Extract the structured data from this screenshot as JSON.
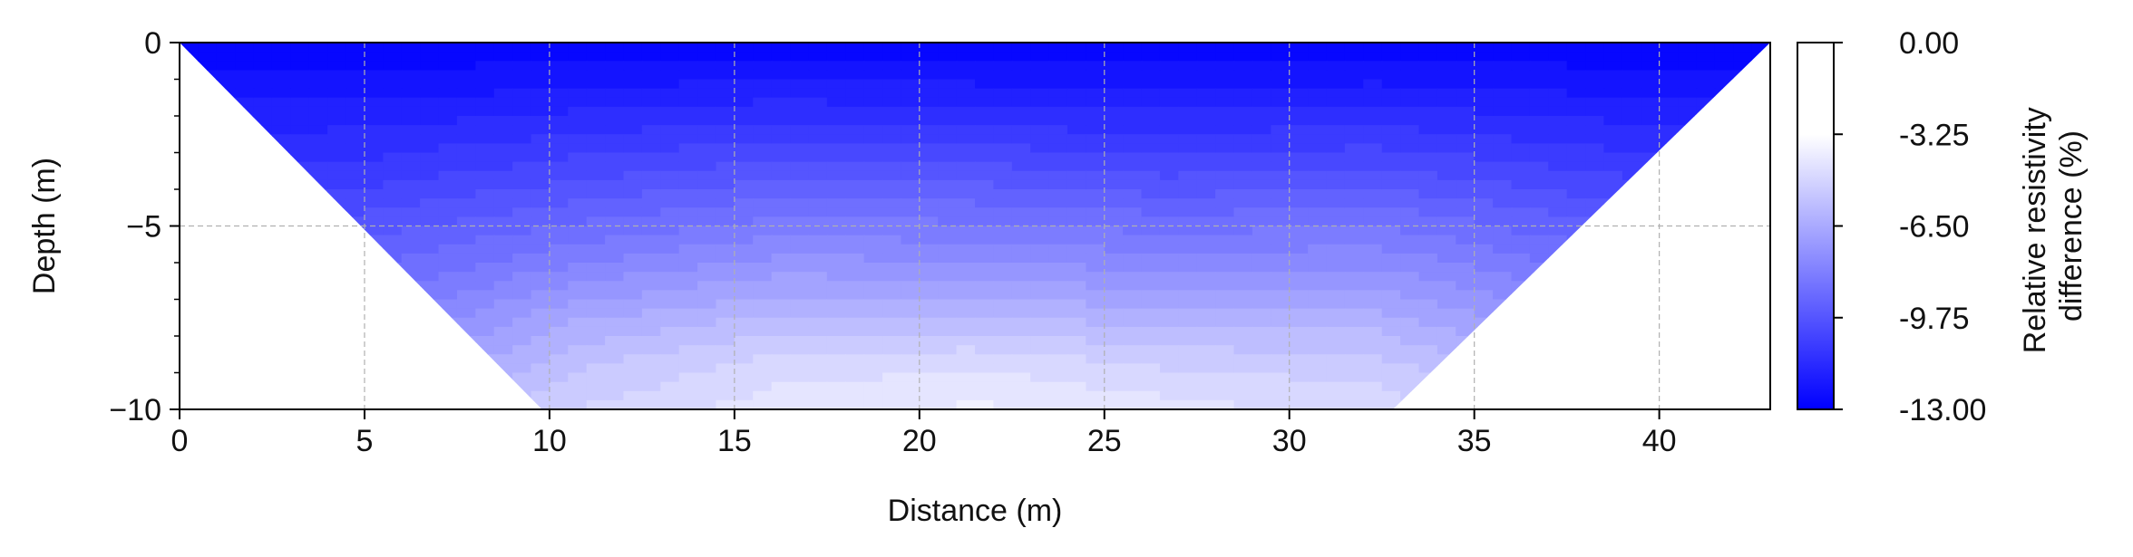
{
  "chart_data": {
    "type": "heatmap",
    "title": "",
    "xlabel": "Distance (m)",
    "ylabel": "Depth (m)",
    "xlim": [
      0,
      43
    ],
    "ylim": [
      -10,
      0
    ],
    "x_ticks": [
      0,
      5,
      10,
      15,
      20,
      25,
      30,
      35,
      40
    ],
    "x_tick_labels": [
      "0",
      "5",
      "10",
      "15",
      "20",
      "25",
      "30",
      "35",
      "40"
    ],
    "y_ticks": [
      0,
      -5,
      -10
    ],
    "y_tick_labels": [
      "0",
      "−5",
      "−10"
    ],
    "grid": true,
    "profile_outline": {
      "x": [
        0,
        43,
        32.8,
        9.8
      ],
      "y": [
        0,
        0,
        -10,
        -10
      ]
    },
    "grid_x": [
      0,
      5.375,
      10.75,
      16.125,
      21.5,
      26.875,
      32.25,
      37.625,
      43
    ],
    "grid_y": [
      0,
      -1.25,
      -2.5,
      -3.75,
      -5,
      -6.25,
      -7.5,
      -8.75,
      -10
    ],
    "values": [
      [
        -12.9,
        -12.9,
        -12.9,
        -12.9,
        -12.9,
        -12.9,
        -12.9,
        -12.9,
        -12.9
      ],
      [
        -12.2,
        -12.2,
        -12.0,
        -11.8,
        -11.9,
        -12.0,
        -11.9,
        -12.1,
        -12.2
      ],
      [
        -11.5,
        -11.4,
        -11.0,
        -10.7,
        -10.8,
        -11.0,
        -10.8,
        -11.2,
        -11.5
      ],
      [
        -10.8,
        -10.6,
        -10.0,
        -9.5,
        -9.6,
        -9.9,
        -9.7,
        -10.3,
        -10.8
      ],
      [
        -10.1,
        -9.7,
        -8.9,
        -8.3,
        -8.4,
        -8.7,
        -8.5,
        -9.3,
        -10.1
      ],
      [
        -9.4,
        -8.9,
        -7.8,
        -7.1,
        -7.2,
        -7.5,
        -7.4,
        -8.4,
        -9.4
      ],
      [
        -8.7,
        -8.1,
        -6.6,
        -5.9,
        -5.9,
        -6.3,
        -6.3,
        -7.5,
        -8.7
      ],
      [
        -8.0,
        -7.3,
        -5.6,
        -4.8,
        -4.6,
        -5.1,
        -5.3,
        -6.6,
        -8.0
      ],
      [
        -7.3,
        -6.5,
        -5.0,
        -4.2,
        -3.9,
        -4.3,
        -4.7,
        -5.7,
        -7.3
      ]
    ],
    "colorbar": {
      "label_line1": "Relative resistivity",
      "label_line2": "difference (%)",
      "min": -13.0,
      "max": 0.0,
      "ticks": [
        0.0,
        -3.25,
        -6.5,
        -9.75,
        -13.0
      ],
      "tick_labels": [
        "0.00",
        "-3.25",
        "-6.50",
        "-9.75",
        "-13.00"
      ],
      "colormap": [
        "#0000ff",
        "#ffffff"
      ]
    }
  }
}
